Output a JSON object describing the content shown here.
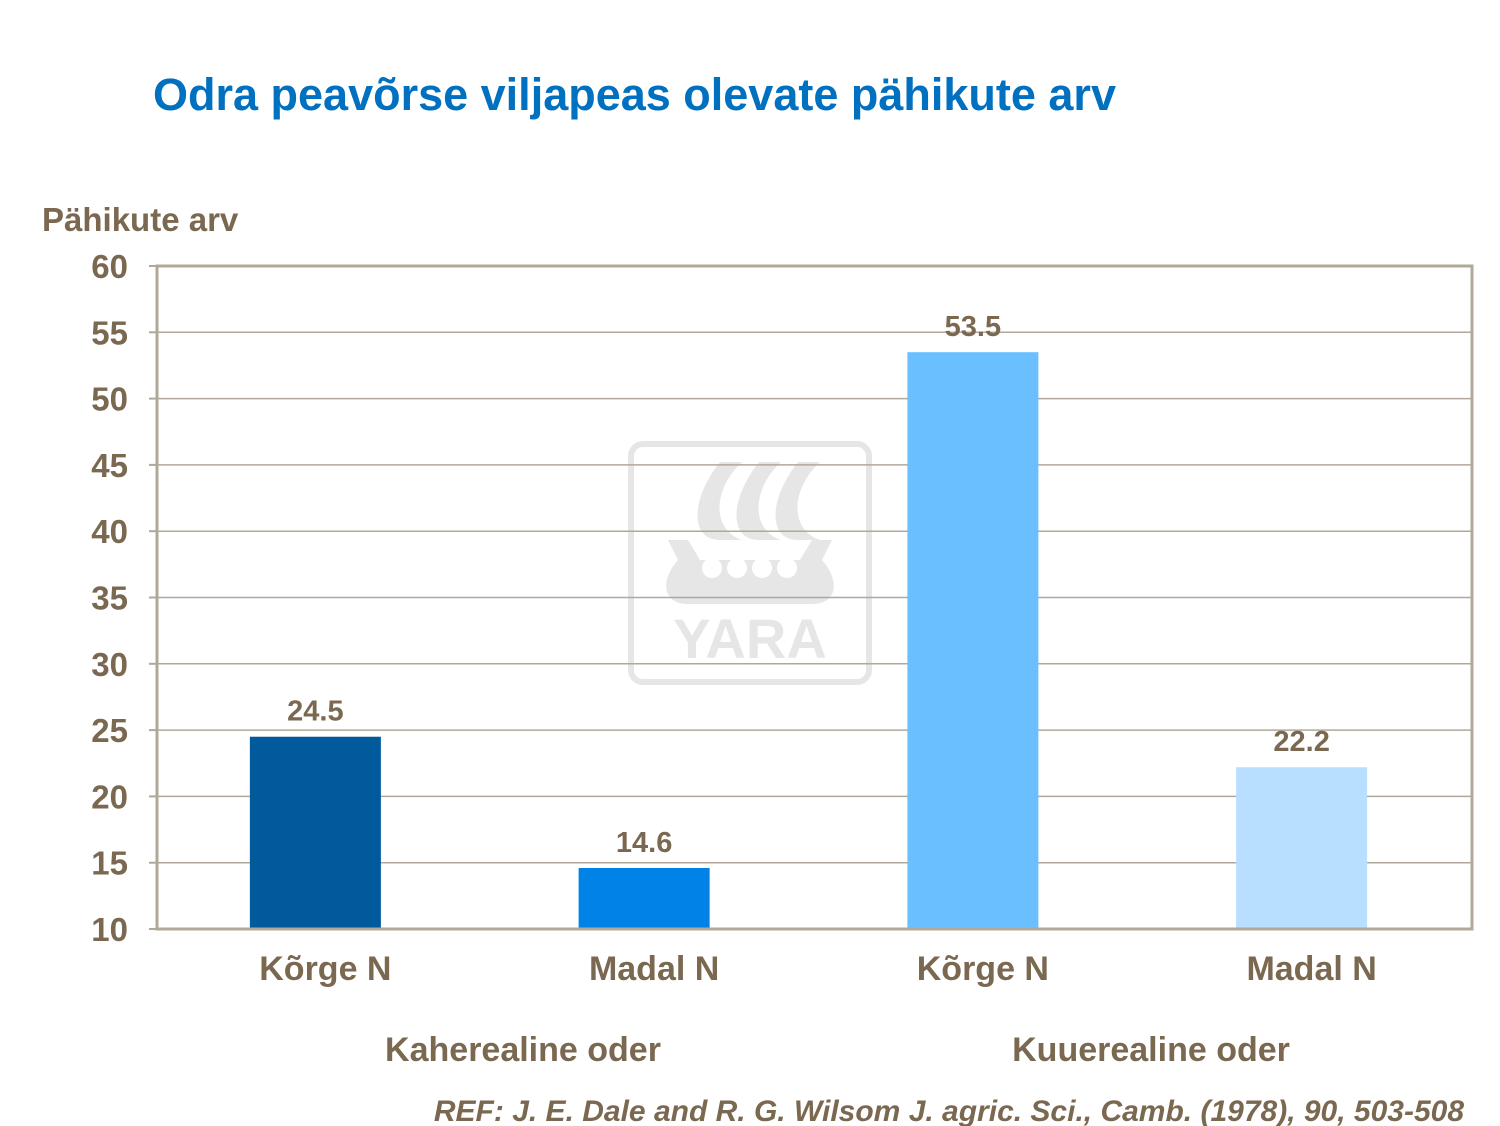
{
  "chart_data": {
    "type": "bar",
    "title": "Odra peavõrse viljapeas olevate pähikute arv",
    "ylabel": "Pähikute arv",
    "xlabel": "",
    "ylim": [
      10,
      60
    ],
    "yticks": [
      10,
      15,
      20,
      25,
      30,
      35,
      40,
      45,
      50,
      55,
      60
    ],
    "grid": true,
    "categories": [
      "Kõrge N",
      "Madal N",
      "Kõrge N",
      "Madal N"
    ],
    "groups": [
      "Kaherealine oder",
      "Kuuerealine oder"
    ],
    "values": [
      24.5,
      14.6,
      53.5,
      22.2
    ],
    "value_labels": [
      "24.5",
      "14.6",
      "53.5",
      "22.2"
    ],
    "colors": [
      "#005a9c",
      "#0082e6",
      "#6abfff",
      "#b8dfff"
    ],
    "title_color": "#0070c0",
    "text_color": "#7a6850",
    "reference": "REF: J. E. Dale and R. G. Wilsom J. agric. Sci., Camb. (1978), 90, 503-508",
    "watermark": "YARA"
  }
}
